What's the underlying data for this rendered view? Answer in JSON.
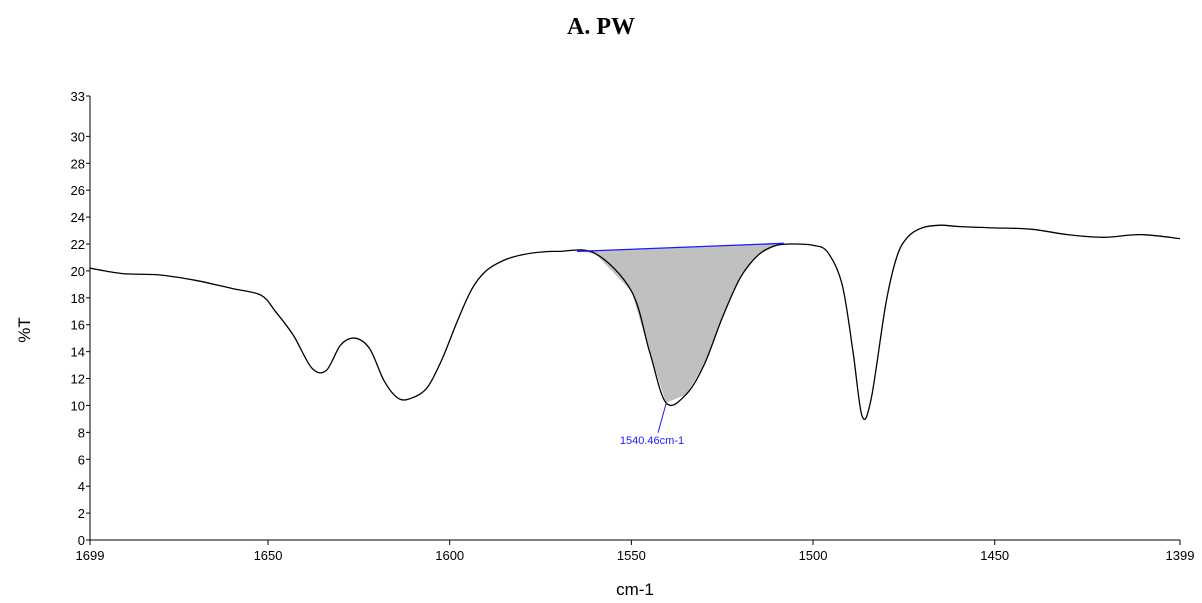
{
  "chart_data": {
    "type": "line",
    "title": "A.  PW",
    "xlabel": "cm-1",
    "ylabel": "%T",
    "xlim": [
      1699,
      1399
    ],
    "ylim": [
      0,
      33
    ],
    "x_ticks": [
      1699,
      1650,
      1600,
      1550,
      1500,
      1450,
      1399
    ],
    "y_ticks": [
      0,
      2,
      4,
      6,
      8,
      10,
      12,
      14,
      16,
      18,
      20,
      22,
      24,
      26,
      28,
      30,
      33
    ],
    "grid": false,
    "series": [
      {
        "color": "#000000",
        "x": [
          1699,
          1690,
          1680,
          1670,
          1660,
          1652,
          1648,
          1643,
          1638,
          1634,
          1630,
          1626,
          1622,
          1618,
          1614,
          1610,
          1606,
          1602,
          1598,
          1594,
          1590,
          1585,
          1580,
          1575,
          1570,
          1560,
          1550,
          1545,
          1540.46,
          1535,
          1530,
          1525,
          1520,
          1515,
          1510,
          1505,
          1500,
          1496,
          1492,
          1489,
          1486.5,
          1484,
          1480,
          1477,
          1474,
          1470,
          1465,
          1460,
          1450,
          1440,
          1430,
          1420,
          1410,
          1399
        ],
        "y": [
          20.2,
          19.8,
          19.7,
          19.3,
          18.7,
          18.2,
          17.0,
          15.2,
          12.8,
          12.6,
          14.5,
          15.0,
          14.2,
          11.8,
          10.5,
          10.6,
          11.4,
          13.5,
          16.2,
          18.6,
          20.0,
          20.8,
          21.2,
          21.4,
          21.45,
          21.3,
          18.5,
          14.0,
          10.2,
          10.8,
          13.0,
          16.5,
          19.5,
          21.2,
          21.9,
          22.0,
          21.9,
          21.4,
          19.0,
          14.0,
          9.2,
          10.5,
          17.5,
          21.0,
          22.5,
          23.2,
          23.4,
          23.3,
          23.2,
          23.1,
          22.7,
          22.5,
          22.7,
          22.4
        ]
      }
    ],
    "peak_area": {
      "baseline_start": [
        1565,
        21.45
      ],
      "baseline_end": [
        1508,
        22.05
      ],
      "fill_color": "#c0c0c0",
      "baseline_color": "#1a1aff"
    },
    "annotations": [
      {
        "text": "1540.46cm-1",
        "x": 1540.46,
        "y": 10.2,
        "color": "#1a1aff"
      }
    ]
  }
}
